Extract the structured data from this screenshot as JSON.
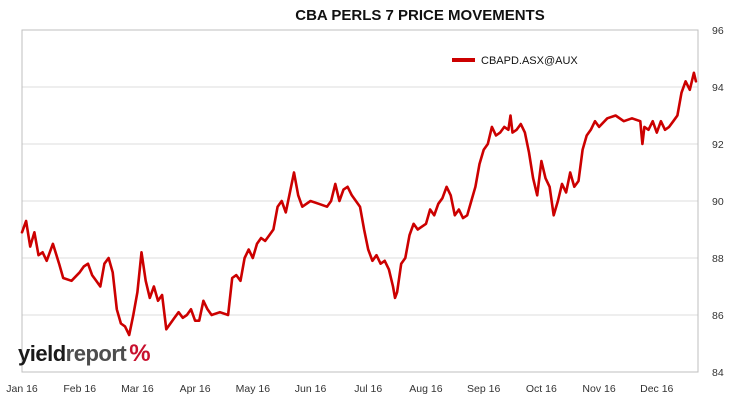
{
  "chart_data": {
    "type": "line",
    "title": "CBA PERLS 7 PRICE MOVEMENTS",
    "xlabel": "",
    "ylabel": "",
    "x_tick_labels": [
      "Jan 16",
      "Feb 16",
      "Mar 16",
      "Apr 16",
      "May 16",
      "Jun 16",
      "Jul 16",
      "Aug 16",
      "Sep 16",
      "Oct 16",
      "Nov 16",
      "Dec 16"
    ],
    "ylim": [
      84,
      96
    ],
    "y_ticks": [
      84,
      86,
      88,
      90,
      92,
      94,
      96
    ],
    "y_axis_side": "right",
    "grid": "horizontal",
    "legend_position": "top-right",
    "series": [
      {
        "name": "CBAPD.ASX@AUX",
        "color": "#cc0000",
        "points": [
          [
            0.0,
            88.9
          ],
          [
            0.1,
            89.3
          ],
          [
            0.2,
            88.4
          ],
          [
            0.3,
            88.9
          ],
          [
            0.4,
            88.1
          ],
          [
            0.5,
            88.2
          ],
          [
            0.6,
            87.9
          ],
          [
            0.75,
            88.5
          ],
          [
            0.9,
            87.8
          ],
          [
            1.0,
            87.3
          ],
          [
            1.2,
            87.2
          ],
          [
            1.4,
            87.5
          ],
          [
            1.5,
            87.7
          ],
          [
            1.6,
            87.8
          ],
          [
            1.7,
            87.4
          ],
          [
            1.8,
            87.2
          ],
          [
            1.9,
            87.0
          ],
          [
            2.0,
            87.8
          ],
          [
            2.1,
            88.0
          ],
          [
            2.2,
            87.5
          ],
          [
            2.3,
            86.2
          ],
          [
            2.4,
            85.7
          ],
          [
            2.5,
            85.6
          ],
          [
            2.6,
            85.3
          ],
          [
            2.7,
            86.0
          ],
          [
            2.8,
            86.8
          ],
          [
            2.9,
            88.2
          ],
          [
            3.0,
            87.2
          ],
          [
            3.1,
            86.6
          ],
          [
            3.2,
            87.0
          ],
          [
            3.3,
            86.5
          ],
          [
            3.4,
            86.7
          ],
          [
            3.5,
            85.5
          ],
          [
            3.6,
            85.7
          ],
          [
            3.7,
            85.9
          ],
          [
            3.8,
            86.1
          ],
          [
            3.9,
            85.9
          ],
          [
            4.0,
            86.0
          ],
          [
            4.1,
            86.2
          ],
          [
            4.2,
            85.8
          ],
          [
            4.3,
            85.8
          ],
          [
            4.4,
            86.5
          ],
          [
            4.5,
            86.2
          ],
          [
            4.6,
            86.0
          ],
          [
            4.8,
            86.1
          ],
          [
            5.0,
            86.0
          ],
          [
            5.1,
            87.3
          ],
          [
            5.2,
            87.4
          ],
          [
            5.3,
            87.2
          ],
          [
            5.4,
            88.0
          ],
          [
            5.5,
            88.3
          ],
          [
            5.6,
            88.0
          ],
          [
            5.7,
            88.5
          ],
          [
            5.8,
            88.7
          ],
          [
            5.9,
            88.6
          ],
          [
            6.0,
            88.8
          ],
          [
            6.1,
            89.0
          ],
          [
            6.2,
            89.8
          ],
          [
            6.3,
            90.0
          ],
          [
            6.4,
            89.6
          ],
          [
            6.5,
            90.3
          ],
          [
            6.6,
            91.0
          ],
          [
            6.7,
            90.2
          ],
          [
            6.8,
            89.8
          ],
          [
            7.0,
            90.0
          ],
          [
            7.2,
            89.9
          ],
          [
            7.4,
            89.8
          ],
          [
            7.5,
            90.0
          ],
          [
            7.6,
            90.6
          ],
          [
            7.7,
            90.0
          ],
          [
            7.8,
            90.4
          ],
          [
            7.9,
            90.5
          ],
          [
            8.0,
            90.2
          ],
          [
            8.1,
            90.0
          ],
          [
            8.2,
            89.8
          ],
          [
            8.3,
            89.0
          ],
          [
            8.4,
            88.3
          ],
          [
            8.5,
            87.9
          ],
          [
            8.6,
            88.1
          ],
          [
            8.7,
            87.8
          ],
          [
            8.8,
            87.9
          ],
          [
            8.9,
            87.6
          ],
          [
            9.0,
            87.0
          ],
          [
            9.05,
            86.6
          ],
          [
            9.1,
            86.8
          ],
          [
            9.2,
            87.8
          ],
          [
            9.3,
            88.0
          ],
          [
            9.4,
            88.8
          ],
          [
            9.5,
            89.2
          ],
          [
            9.6,
            89.0
          ],
          [
            9.7,
            89.1
          ],
          [
            9.8,
            89.2
          ],
          [
            9.9,
            89.7
          ],
          [
            10.0,
            89.5
          ],
          [
            10.1,
            89.9
          ],
          [
            10.2,
            90.1
          ],
          [
            10.3,
            90.5
          ],
          [
            10.4,
            90.2
          ],
          [
            10.5,
            89.5
          ],
          [
            10.6,
            89.7
          ],
          [
            10.7,
            89.4
          ],
          [
            10.8,
            89.5
          ],
          [
            10.9,
            90.0
          ],
          [
            11.0,
            90.5
          ],
          [
            11.1,
            91.3
          ],
          [
            11.2,
            91.8
          ],
          [
            11.3,
            92.0
          ],
          [
            11.4,
            92.6
          ],
          [
            11.5,
            92.3
          ],
          [
            11.6,
            92.4
          ],
          [
            11.7,
            92.6
          ],
          [
            11.8,
            92.5
          ],
          [
            11.85,
            93.0
          ],
          [
            11.9,
            92.4
          ],
          [
            12.0,
            92.5
          ],
          [
            12.1,
            92.7
          ],
          [
            12.2,
            92.4
          ],
          [
            12.3,
            91.7
          ],
          [
            12.4,
            90.8
          ],
          [
            12.5,
            90.2
          ],
          [
            12.6,
            91.4
          ],
          [
            12.7,
            90.8
          ],
          [
            12.8,
            90.5
          ],
          [
            12.9,
            89.5
          ],
          [
            13.0,
            90.0
          ],
          [
            13.1,
            90.6
          ],
          [
            13.2,
            90.3
          ],
          [
            13.3,
            91.0
          ],
          [
            13.4,
            90.5
          ],
          [
            13.5,
            90.7
          ],
          [
            13.6,
            91.8
          ],
          [
            13.7,
            92.3
          ],
          [
            13.8,
            92.5
          ],
          [
            13.9,
            92.8
          ],
          [
            14.0,
            92.6
          ],
          [
            14.2,
            92.9
          ],
          [
            14.4,
            93.0
          ],
          [
            14.6,
            92.8
          ],
          [
            14.8,
            92.9
          ],
          [
            15.0,
            92.8
          ],
          [
            15.05,
            92.0
          ],
          [
            15.1,
            92.6
          ],
          [
            15.2,
            92.5
          ],
          [
            15.3,
            92.8
          ],
          [
            15.4,
            92.4
          ],
          [
            15.5,
            92.8
          ],
          [
            15.6,
            92.5
          ],
          [
            15.7,
            92.6
          ],
          [
            15.8,
            92.8
          ],
          [
            15.9,
            93.0
          ],
          [
            16.0,
            93.8
          ],
          [
            16.1,
            94.2
          ],
          [
            16.2,
            93.9
          ],
          [
            16.3,
            94.5
          ],
          [
            16.35,
            94.2
          ]
        ]
      }
    ]
  },
  "watermark": {
    "word1": "yield",
    "word2": "report",
    "symbol": "%"
  }
}
